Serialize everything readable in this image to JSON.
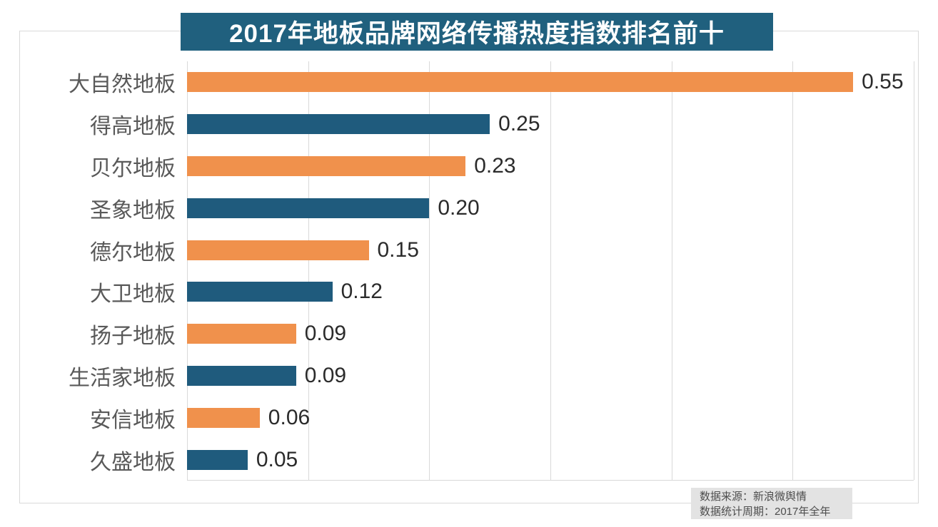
{
  "chart_data": {
    "type": "bar",
    "orientation": "horizontal",
    "title": "2017年地板品牌网络传播热度指数排名前十",
    "categories": [
      "大自然地板",
      "得高地板",
      "贝尔地板",
      "圣象地板",
      "德尔地板",
      "大卫地板",
      "扬子地板",
      "生活家地板",
      "安信地板",
      "久盛地板"
    ],
    "values": [
      0.55,
      0.25,
      0.23,
      0.2,
      0.15,
      0.12,
      0.09,
      0.09,
      0.06,
      0.05
    ],
    "value_labels": [
      "0.55",
      "0.25",
      "0.23",
      "0.20",
      "0.15",
      "0.12",
      "0.09",
      "0.09",
      "0.06",
      "0.05"
    ],
    "xlim": [
      0,
      0.6
    ],
    "grid_step": 0.1,
    "gridlines": "vertical only, no axis tick labels",
    "legend": "none",
    "bar_color_pattern": "alternating orange/blue starting with orange"
  },
  "footer": {
    "source_line": "数据来源：新浪微舆情",
    "period_line": "数据统计周期：2017年全年"
  },
  "colors": {
    "banner_bg": "#20607e",
    "banner_text": "#ffffff",
    "bar_orange": "#f0914c",
    "bar_blue": "#1f5b7d",
    "category_text": "#595959",
    "value_text": "#2b2b2b",
    "gridline": "#d9d9d9",
    "border": "#d9d9d9",
    "footer_bg": "#e3e3e3",
    "footer_text": "#4d4d4d"
  }
}
